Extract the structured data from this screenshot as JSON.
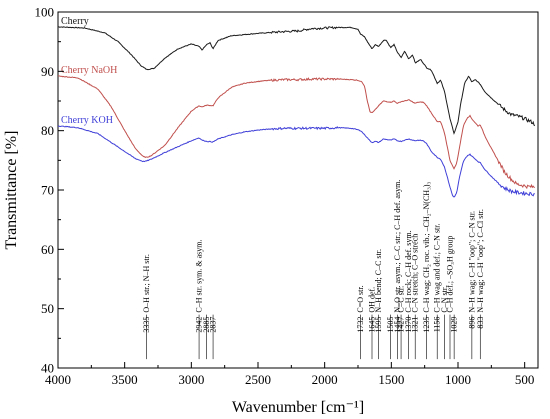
{
  "chart_data": {
    "type": "line",
    "xlabel": "Wavenumber [cm⁻¹]",
    "ylabel": "Transmittance [%]",
    "xlim": [
      4000,
      400
    ],
    "ylim": [
      40,
      100
    ],
    "x_reversed": true,
    "x_ticks": [
      4000,
      3500,
      3000,
      2500,
      2000,
      1500,
      1000,
      500
    ],
    "y_ticks": [
      40,
      50,
      60,
      70,
      80,
      90,
      100
    ],
    "grid": false,
    "legend_position": "inline, near each curve at left",
    "series": [
      {
        "name": "Cherry",
        "color": "#1a1a1a",
        "points": [
          [
            4000,
            97.5
          ],
          [
            3800,
            97.3
          ],
          [
            3650,
            96.5
          ],
          [
            3550,
            95
          ],
          [
            3450,
            92.8
          ],
          [
            3380,
            91
          ],
          [
            3335,
            90.3
          ],
          [
            3280,
            90.5
          ],
          [
            3200,
            92.2
          ],
          [
            3100,
            93.8
          ],
          [
            3000,
            94.6
          ],
          [
            2942,
            94.2
          ],
          [
            2920,
            93.6
          ],
          [
            2885,
            94.5
          ],
          [
            2860,
            94.8
          ],
          [
            2837,
            93.8
          ],
          [
            2800,
            95.2
          ],
          [
            2700,
            96
          ],
          [
            2500,
            96.4
          ],
          [
            2300,
            96.7
          ],
          [
            2200,
            96.8
          ],
          [
            2100,
            97.2
          ],
          [
            2000,
            97.3
          ],
          [
            1900,
            97.4
          ],
          [
            1800,
            97.4
          ],
          [
            1750,
            97.1
          ],
          [
            1732,
            96.3
          ],
          [
            1700,
            95.8
          ],
          [
            1680,
            95
          ],
          [
            1645,
            93.8
          ],
          [
            1620,
            94.5
          ],
          [
            1595,
            94.2
          ],
          [
            1560,
            95.2
          ],
          [
            1540,
            95.3
          ],
          [
            1505,
            94
          ],
          [
            1480,
            94.5
          ],
          [
            1454,
            93.2
          ],
          [
            1427,
            92.3
          ],
          [
            1400,
            93.4
          ],
          [
            1370,
            92.1
          ],
          [
            1340,
            92.8
          ],
          [
            1321,
            91.4
          ],
          [
            1280,
            92
          ],
          [
            1235,
            90.6
          ],
          [
            1200,
            90.2
          ],
          [
            1156,
            88
          ],
          [
            1130,
            88.5
          ],
          [
            1100,
            86.5
          ],
          [
            1060,
            82
          ],
          [
            1029,
            79.5
          ],
          [
            1000,
            81.5
          ],
          [
            980,
            84.5
          ],
          [
            950,
            88
          ],
          [
            920,
            89.2
          ],
          [
            896,
            88.2
          ],
          [
            870,
            88.6
          ],
          [
            850,
            88.2
          ],
          [
            833,
            87.8
          ],
          [
            800,
            86.6
          ],
          [
            750,
            85.5
          ],
          [
            700,
            84.5
          ],
          [
            650,
            83.5
          ],
          [
            600,
            82.7
          ],
          [
            560,
            82.5
          ],
          [
            520,
            82.2
          ],
          [
            480,
            81.8
          ],
          [
            450,
            81.5
          ],
          [
            420,
            81
          ]
        ]
      },
      {
        "name": "Cherry NaOH",
        "color": "#c0504d",
        "points": [
          [
            4000,
            89.2
          ],
          [
            3850,
            88.9
          ],
          [
            3700,
            87
          ],
          [
            3600,
            84
          ],
          [
            3500,
            80
          ],
          [
            3420,
            77
          ],
          [
            3360,
            75.6
          ],
          [
            3335,
            75.5
          ],
          [
            3300,
            75.8
          ],
          [
            3200,
            77.5
          ],
          [
            3100,
            80.5
          ],
          [
            3000,
            83.3
          ],
          [
            2942,
            84.2
          ],
          [
            2920,
            84
          ],
          [
            2885,
            84.3
          ],
          [
            2837,
            84.2
          ],
          [
            2800,
            85.5
          ],
          [
            2700,
            87.3
          ],
          [
            2600,
            88
          ],
          [
            2500,
            88.3
          ],
          [
            2400,
            88.5
          ],
          [
            2300,
            88.6
          ],
          [
            2200,
            88.6
          ],
          [
            2100,
            88.7
          ],
          [
            2000,
            88.7
          ],
          [
            1900,
            88.7
          ],
          [
            1800,
            88.6
          ],
          [
            1750,
            88.5
          ],
          [
            1720,
            88.2
          ],
          [
            1700,
            87.5
          ],
          [
            1680,
            85
          ],
          [
            1660,
            83.2
          ],
          [
            1645,
            83
          ],
          [
            1630,
            83.3
          ],
          [
            1595,
            84.2
          ],
          [
            1560,
            85
          ],
          [
            1505,
            84.8
          ],
          [
            1480,
            85
          ],
          [
            1454,
            84.6
          ],
          [
            1427,
            84.9
          ],
          [
            1400,
            85
          ],
          [
            1370,
            85.2
          ],
          [
            1321,
            84.6
          ],
          [
            1300,
            84.8
          ],
          [
            1260,
            84.8
          ],
          [
            1235,
            84.2
          ],
          [
            1200,
            83
          ],
          [
            1156,
            81.5
          ],
          [
            1130,
            81.5
          ],
          [
            1100,
            79.5
          ],
          [
            1060,
            75
          ],
          [
            1040,
            74
          ],
          [
            1029,
            73.6
          ],
          [
            1010,
            74.5
          ],
          [
            990,
            77
          ],
          [
            960,
            80.8
          ],
          [
            930,
            82.2
          ],
          [
            910,
            82.5
          ],
          [
            896,
            82
          ],
          [
            870,
            81.3
          ],
          [
            850,
            80.8
          ],
          [
            833,
            81
          ],
          [
            800,
            79.2
          ],
          [
            750,
            77
          ],
          [
            700,
            75
          ],
          [
            650,
            73
          ],
          [
            600,
            71.8
          ],
          [
            560,
            71
          ],
          [
            520,
            70.8
          ],
          [
            480,
            70.6
          ],
          [
            420,
            70.5
          ]
        ]
      },
      {
        "name": "Cherry KOH",
        "color": "#3f3fd8",
        "points": [
          [
            4000,
            80.8
          ],
          [
            3850,
            80.5
          ],
          [
            3700,
            79.5
          ],
          [
            3600,
            78
          ],
          [
            3500,
            76.5
          ],
          [
            3420,
            75.3
          ],
          [
            3360,
            74.8
          ],
          [
            3335,
            74.9
          ],
          [
            3300,
            75.2
          ],
          [
            3200,
            76.3
          ],
          [
            3100,
            77.3
          ],
          [
            3000,
            78.3
          ],
          [
            2942,
            78.8
          ],
          [
            2920,
            78.4
          ],
          [
            2885,
            78.2
          ],
          [
            2837,
            78.1
          ],
          [
            2800,
            78.6
          ],
          [
            2700,
            79.3
          ],
          [
            2600,
            79.8
          ],
          [
            2500,
            80.1
          ],
          [
            2400,
            80.3
          ],
          [
            2300,
            80.4
          ],
          [
            2200,
            80.4
          ],
          [
            2100,
            80.4
          ],
          [
            2000,
            80.4
          ],
          [
            1900,
            80.5
          ],
          [
            1800,
            80.4
          ],
          [
            1760,
            80.2
          ],
          [
            1730,
            80
          ],
          [
            1700,
            79.3
          ],
          [
            1680,
            78.8
          ],
          [
            1660,
            78.3
          ],
          [
            1645,
            78
          ],
          [
            1620,
            78.2
          ],
          [
            1595,
            78
          ],
          [
            1560,
            78.6
          ],
          [
            1505,
            78.4
          ],
          [
            1480,
            78.6
          ],
          [
            1454,
            78.3
          ],
          [
            1427,
            78.2
          ],
          [
            1400,
            78.4
          ],
          [
            1370,
            78.6
          ],
          [
            1321,
            78.3
          ],
          [
            1300,
            78.4
          ],
          [
            1260,
            78.3
          ],
          [
            1235,
            77.8
          ],
          [
            1200,
            76.5
          ],
          [
            1156,
            75.5
          ],
          [
            1130,
            75.2
          ],
          [
            1100,
            73.8
          ],
          [
            1060,
            70.5
          ],
          [
            1040,
            69
          ],
          [
            1029,
            68.8
          ],
          [
            1010,
            69.5
          ],
          [
            990,
            72
          ],
          [
            960,
            74.8
          ],
          [
            930,
            75.8
          ],
          [
            910,
            76
          ],
          [
            896,
            75.7
          ],
          [
            870,
            75.2
          ],
          [
            850,
            74.8
          ],
          [
            833,
            74.6
          ],
          [
            800,
            73.5
          ],
          [
            750,
            72.3
          ],
          [
            700,
            71.2
          ],
          [
            650,
            70.3
          ],
          [
            600,
            69.8
          ],
          [
            560,
            69.6
          ],
          [
            520,
            69.5
          ],
          [
            480,
            69.4
          ],
          [
            420,
            69.3
          ]
        ]
      }
    ],
    "annotations": [
      {
        "x": 3335,
        "label": "3335",
        "text": "O–H str.; N–H str."
      },
      {
        "x": 2942,
        "label": "2942",
        "text": "C–H str. sym. & asym."
      },
      {
        "x": 2885,
        "label": "2885",
        "text": ""
      },
      {
        "x": 2837,
        "label": "2837",
        "text": ""
      },
      {
        "x": 1732,
        "label": "1732",
        "text": "C=O str."
      },
      {
        "x": 1645,
        "label": "1645",
        "text": "OH def."
      },
      {
        "x": 1595,
        "label": "1595",
        "text": "N–H bend; C–C str."
      },
      {
        "x": 1505,
        "label": "1505",
        "text": ""
      },
      {
        "x": 1454,
        "label": "1454",
        "text": "N–O str. asym.; C–C str.; C–H def. asym."
      },
      {
        "x": 1427,
        "label": "1427",
        "text": "C=C str."
      },
      {
        "x": 1370,
        "label": "1370",
        "text": "C–H rock; C–H def. sym."
      },
      {
        "x": 1321,
        "label": "1321",
        "text": "C–N stretch; C–O strech"
      },
      {
        "x": 1235,
        "label": "1235",
        "text": "C–H wag; CH₂ roc. vib.; –CH₂–N(CH₃)₃"
      },
      {
        "x": 1156,
        "label": "1156",
        "text": "C–H wag and def.; C–N str."
      },
      {
        "x": 1100,
        "label": "",
        "text": "C–N str."
      },
      {
        "x": 1060,
        "label": "",
        "text": "C–H def.; –SO₃H group"
      },
      {
        "x": 1029,
        "label": "1029",
        "text": ""
      },
      {
        "x": 896,
        "label": "896",
        "text": "N–H wag; C–H \"oop\"; C–N str."
      },
      {
        "x": 833,
        "label": "833",
        "text": "N–H wag; C–H \"oop\"; C–Cl str."
      }
    ]
  }
}
